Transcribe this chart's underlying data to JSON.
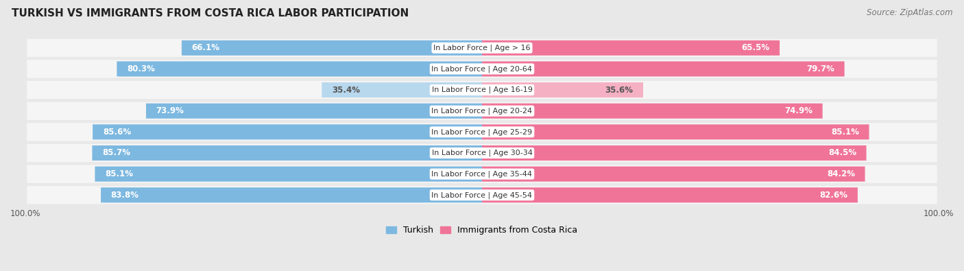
{
  "title": "TURKISH VS IMMIGRANTS FROM COSTA RICA LABOR PARTICIPATION",
  "source": "Source: ZipAtlas.com",
  "categories": [
    "In Labor Force | Age > 16",
    "In Labor Force | Age 20-64",
    "In Labor Force | Age 16-19",
    "In Labor Force | Age 20-24",
    "In Labor Force | Age 25-29",
    "In Labor Force | Age 30-34",
    "In Labor Force | Age 35-44",
    "In Labor Force | Age 45-54"
  ],
  "turkish_values": [
    66.1,
    80.3,
    35.4,
    73.9,
    85.6,
    85.7,
    85.1,
    83.8
  ],
  "costa_rica_values": [
    65.5,
    79.7,
    35.6,
    74.9,
    85.1,
    84.5,
    84.2,
    82.6
  ],
  "turkish_color": "#7db8e0",
  "turkish_color_light": "#b8d8ee",
  "costa_rica_color": "#f07498",
  "costa_rica_color_light": "#f5b0c4",
  "label_color_white": "#ffffff",
  "label_color_dark": "#555555",
  "background_color": "#e8e8e8",
  "row_bg_color": "#f5f5f5",
  "legend_turkish": "Turkish",
  "legend_costa_rica": "Immigrants from Costa Rica",
  "bar_height": 0.72,
  "max_value": 100.0,
  "threshold_white_text": 45.0,
  "title_fontsize": 11,
  "source_fontsize": 8.5,
  "bar_label_fontsize": 8.5,
  "category_label_fontsize": 8,
  "legend_fontsize": 9,
  "axis_label_fontsize": 8.5
}
